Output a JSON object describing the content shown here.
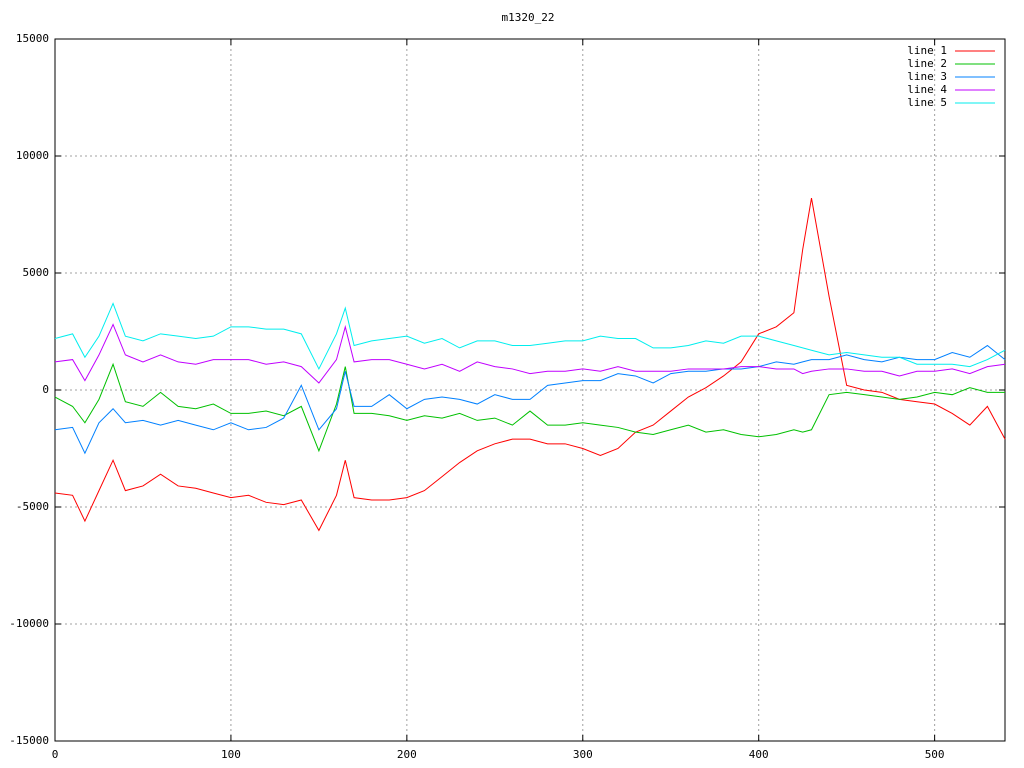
{
  "chart_data": {
    "type": "line",
    "title": "m1320_22",
    "x": [
      0,
      10,
      17,
      25,
      33,
      40,
      50,
      60,
      70,
      80,
      90,
      100,
      110,
      120,
      130,
      140,
      150,
      160,
      165,
      170,
      180,
      190,
      200,
      210,
      220,
      230,
      240,
      250,
      260,
      270,
      280,
      290,
      300,
      310,
      320,
      330,
      340,
      350,
      360,
      370,
      380,
      390,
      400,
      410,
      420,
      425,
      430,
      440,
      450,
      460,
      470,
      480,
      490,
      500,
      510,
      520,
      530,
      540
    ],
    "series": [
      {
        "name": "line 1",
        "color": "#ff0000",
        "values": [
          -4400,
          -4500,
          -5600,
          -4300,
          -3000,
          -4300,
          -4100,
          -3600,
          -4100,
          -4200,
          -4400,
          -4600,
          -4500,
          -4800,
          -4900,
          -4700,
          -6000,
          -4500,
          -3000,
          -4600,
          -4700,
          -4700,
          -4600,
          -4300,
          -3700,
          -3100,
          -2600,
          -2300,
          -2100,
          -2100,
          -2300,
          -2300,
          -2500,
          -2800,
          -2500,
          -1800,
          -1500,
          -900,
          -300,
          100,
          600,
          1200,
          2400,
          2700,
          3300,
          6000,
          8200,
          4000,
          200,
          0,
          -100,
          -400,
          -500,
          -600,
          -1000,
          -1500,
          -700,
          -2100
        ]
      },
      {
        "name": "line 2",
        "color": "#00c000",
        "values": [
          -300,
          -700,
          -1400,
          -400,
          1100,
          -500,
          -700,
          -100,
          -700,
          -800,
          -600,
          -1000,
          -1000,
          -900,
          -1100,
          -700,
          -2600,
          -600,
          1000,
          -1000,
          -1000,
          -1100,
          -1300,
          -1100,
          -1200,
          -1000,
          -1300,
          -1200,
          -1500,
          -900,
          -1500,
          -1500,
          -1400,
          -1500,
          -1600,
          -1800,
          -1900,
          -1700,
          -1500,
          -1800,
          -1700,
          -1900,
          -2000,
          -1900,
          -1700,
          -1800,
          -1700,
          -200,
          -100,
          -200,
          -300,
          -400,
          -300,
          -100,
          -200,
          100,
          -100,
          -100
        ]
      },
      {
        "name": "line 3",
        "color": "#0080ff",
        "values": [
          -1700,
          -1600,
          -2700,
          -1400,
          -800,
          -1400,
          -1300,
          -1500,
          -1300,
          -1500,
          -1700,
          -1400,
          -1700,
          -1600,
          -1200,
          200,
          -1700,
          -800,
          800,
          -700,
          -700,
          -200,
          -800,
          -400,
          -300,
          -400,
          -600,
          -200,
          -400,
          -400,
          200,
          300,
          400,
          400,
          700,
          600,
          300,
          700,
          800,
          800,
          900,
          900,
          1000,
          1200,
          1100,
          1200,
          1300,
          1300,
          1500,
          1300,
          1200,
          1400,
          1300,
          1300,
          1600,
          1400,
          1900,
          1300
        ]
      },
      {
        "name": "line 4",
        "color": "#c000ff",
        "values": [
          1200,
          1300,
          400,
          1500,
          2800,
          1500,
          1200,
          1500,
          1200,
          1100,
          1300,
          1300,
          1300,
          1100,
          1200,
          1000,
          300,
          1300,
          2700,
          1200,
          1300,
          1300,
          1100,
          900,
          1100,
          800,
          1200,
          1000,
          900,
          700,
          800,
          800,
          900,
          800,
          1000,
          800,
          800,
          800,
          900,
          900,
          900,
          1000,
          1000,
          900,
          900,
          700,
          800,
          900,
          900,
          800,
          800,
          600,
          800,
          800,
          900,
          700,
          1000,
          1100
        ]
      },
      {
        "name": "line 5",
        "color": "#00eeee",
        "values": [
          2200,
          2400,
          1400,
          2300,
          3700,
          2300,
          2100,
          2400,
          2300,
          2200,
          2300,
          2700,
          2700,
          2600,
          2600,
          2400,
          900,
          2400,
          3500,
          1900,
          2100,
          2200,
          2300,
          2000,
          2200,
          1800,
          2100,
          2100,
          1900,
          1900,
          2000,
          2100,
          2100,
          2300,
          2200,
          2200,
          1800,
          1800,
          1900,
          2100,
          2000,
          2300,
          2300,
          2100,
          1900,
          1800,
          1700,
          1500,
          1600,
          1500,
          1400,
          1400,
          1100,
          1100,
          1100,
          1000,
          1300,
          1700
        ]
      }
    ],
    "xlim": [
      0,
      540
    ],
    "xticks": [
      0,
      100,
      200,
      300,
      400,
      500
    ],
    "ylim": [
      -15000,
      15000
    ],
    "yticks": [
      -15000,
      -10000,
      -5000,
      0,
      5000,
      10000,
      15000
    ],
    "grid": true,
    "legend": "top-right"
  }
}
